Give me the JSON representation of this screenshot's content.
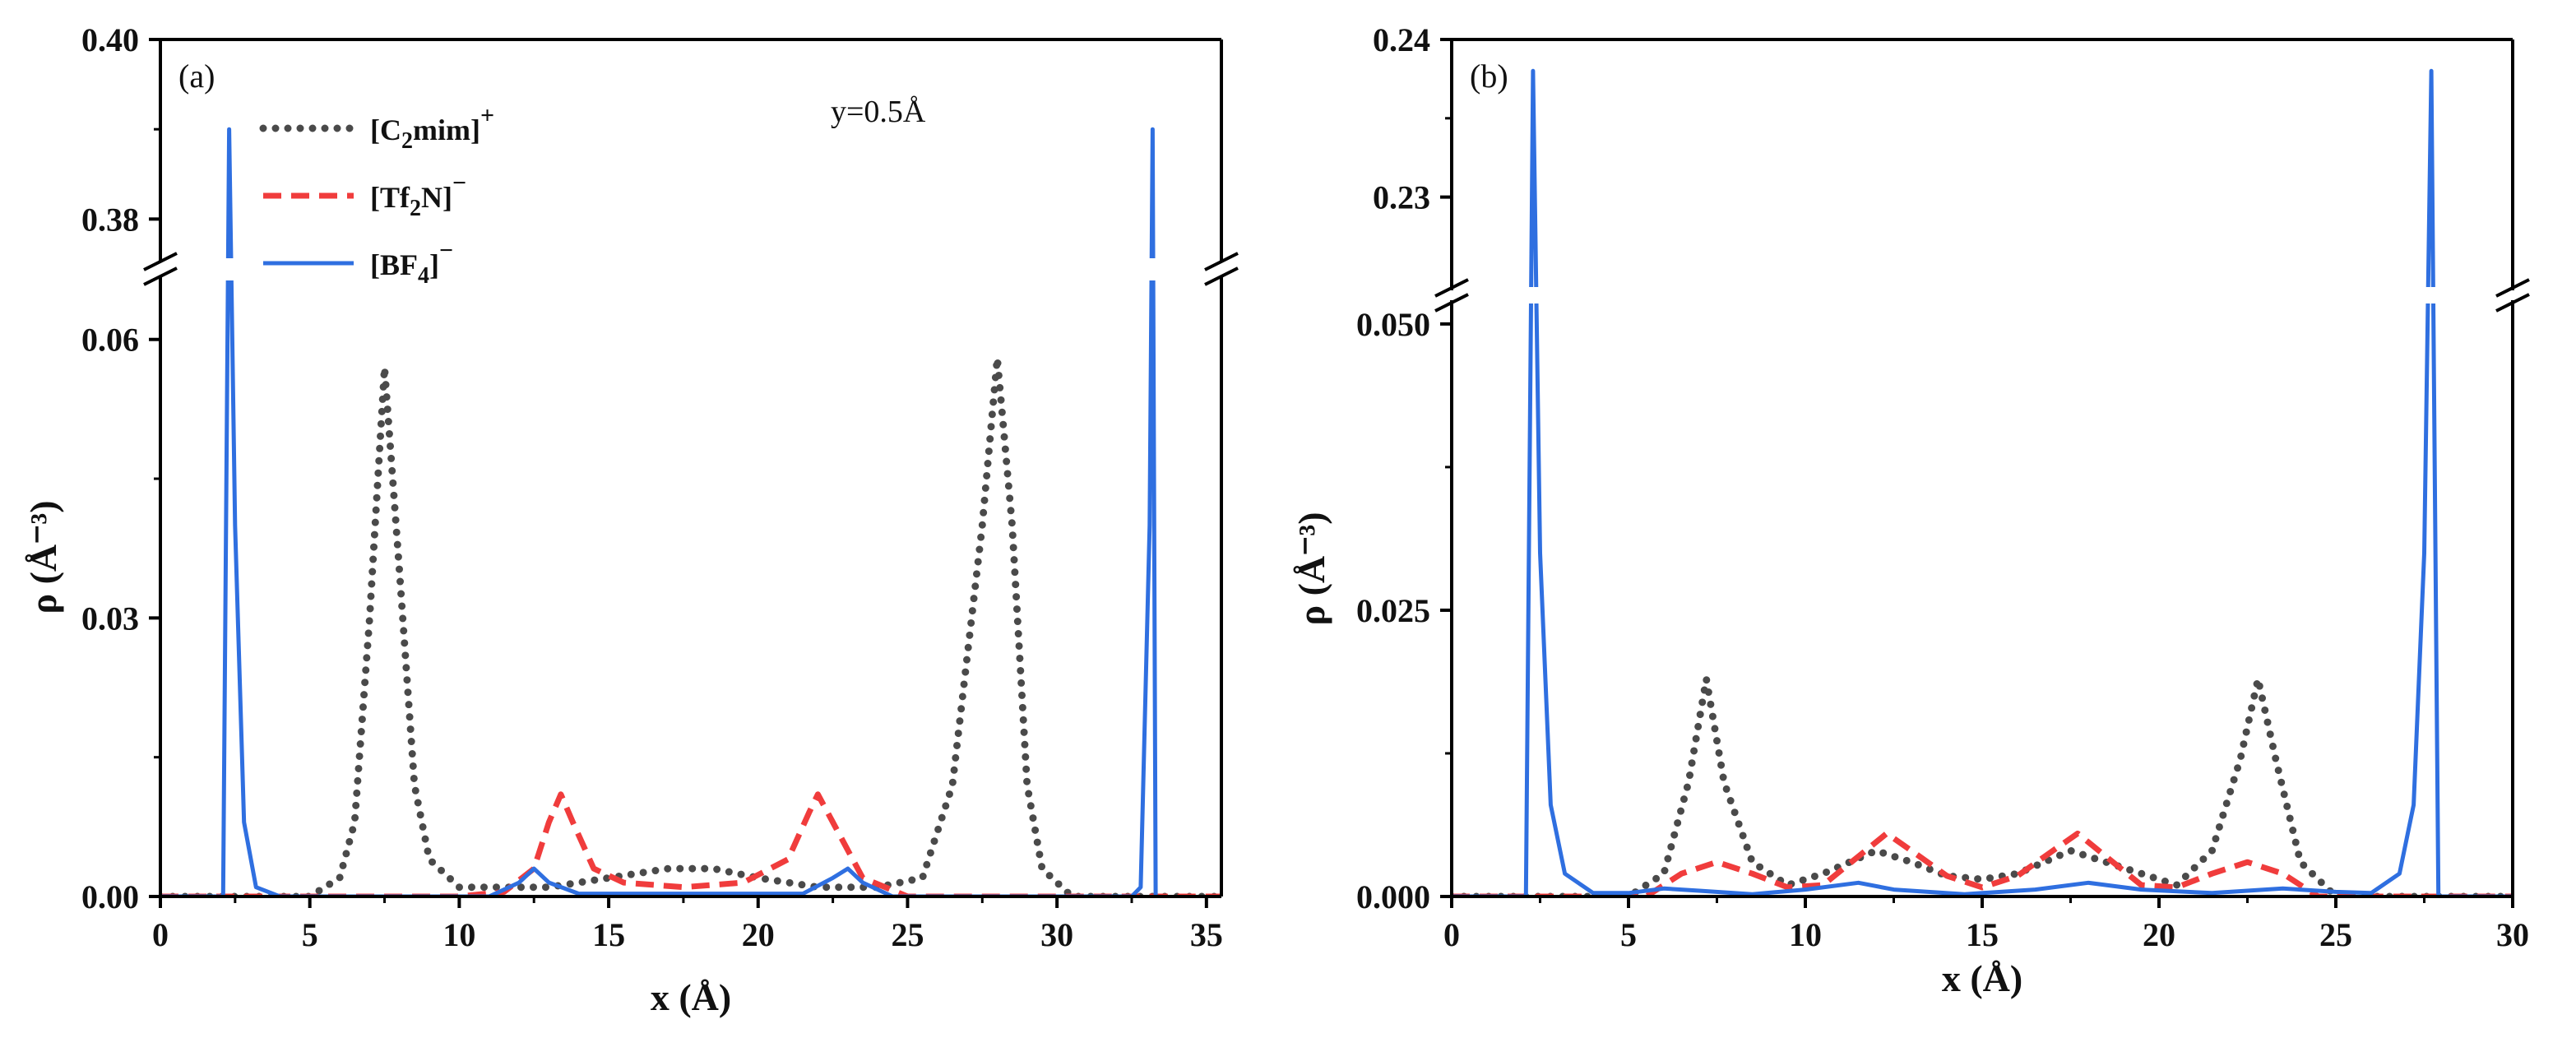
{
  "chart_data": [
    {
      "type": "line",
      "panel_label": "(a)",
      "annotation": "y=0.5Å",
      "xlabel": "x (Å)",
      "ylabel": "ρ (Å⁻³)",
      "xlim": [
        0,
        35.5
      ],
      "xticks": [
        0,
        5,
        10,
        15,
        20,
        25,
        30,
        35
      ],
      "ylim_lower": [
        0,
        0.066
      ],
      "ylim_upper": [
        0.376,
        0.4
      ],
      "yticks_lower": [
        0,
        0.03,
        0.06
      ],
      "yticks_upper": [
        0.38,
        0.4
      ],
      "ytick_labels_lower": [
        "0.00",
        "0.03",
        "0.06"
      ],
      "ytick_labels_upper": [
        "0.38",
        "0.40"
      ],
      "legend": {
        "position": "top-left"
      },
      "series": [
        {
          "name": "C2mim",
          "label_main": "[C",
          "label_sub": "2",
          "label_rest": "mim]",
          "label_sup": "+",
          "color": "#4a4a4a",
          "style": "dotted",
          "points": [
            [
              0,
              0
            ],
            [
              5,
              0
            ],
            [
              6,
              0.002
            ],
            [
              6.5,
              0.008
            ],
            [
              7,
              0.03
            ],
            [
              7.5,
              0.057
            ],
            [
              8,
              0.035
            ],
            [
              8.5,
              0.012
            ],
            [
              9,
              0.004
            ],
            [
              10,
              0.001
            ],
            [
              11.5,
              0.001
            ],
            [
              13,
              0.001
            ],
            [
              15,
              0.002
            ],
            [
              17,
              0.003
            ],
            [
              18.5,
              0.003
            ],
            [
              20,
              0.002
            ],
            [
              22,
              0.001
            ],
            [
              24,
              0.001
            ],
            [
              25.5,
              0.002
            ],
            [
              26.5,
              0.012
            ],
            [
              27.5,
              0.04
            ],
            [
              28,
              0.058
            ],
            [
              28.5,
              0.04
            ],
            [
              29,
              0.012
            ],
            [
              29.5,
              0.003
            ],
            [
              30.5,
              0
            ],
            [
              35.5,
              0
            ]
          ]
        },
        {
          "name": "Tf2N",
          "label_main": "[Tf",
          "label_sub": "2",
          "label_rest": "N]",
          "label_sup": "−",
          "color": "#f03c3c",
          "style": "dashed",
          "points": [
            [
              0,
              0
            ],
            [
              10,
              0
            ],
            [
              11.5,
              0.0005
            ],
            [
              12.5,
              0.003
            ],
            [
              13,
              0.008
            ],
            [
              13.4,
              0.011
            ],
            [
              13.8,
              0.008
            ],
            [
              14.5,
              0.003
            ],
            [
              15.5,
              0.0015
            ],
            [
              17.5,
              0.001
            ],
            [
              19.5,
              0.0015
            ],
            [
              21,
              0.004
            ],
            [
              21.7,
              0.009
            ],
            [
              22,
              0.011
            ],
            [
              22.5,
              0.008
            ],
            [
              23.5,
              0.002
            ],
            [
              25,
              0
            ],
            [
              35.5,
              0
            ]
          ]
        },
        {
          "name": "BF4",
          "label_main": "[BF",
          "label_sub": "4",
          "label_rest": "]",
          "label_sup": "−",
          "color": "#2f6fe0",
          "style": "solid",
          "points": [
            [
              0,
              0
            ],
            [
              2.1,
              0
            ],
            [
              2.3,
              0.39
            ],
            [
              2.5,
              0.04
            ],
            [
              2.8,
              0.008
            ],
            [
              3.2,
              0.001
            ],
            [
              4,
              0
            ],
            [
              11,
              0
            ],
            [
              12,
              0.0015
            ],
            [
              12.5,
              0.003
            ],
            [
              13,
              0.0015
            ],
            [
              14,
              0.0003
            ],
            [
              21.5,
              0.0003
            ],
            [
              22.5,
              0.002
            ],
            [
              23,
              0.003
            ],
            [
              23.5,
              0.0015
            ],
            [
              24.5,
              0
            ],
            [
              32.5,
              0
            ],
            [
              32.8,
              0.001
            ],
            [
              33.1,
              0.04
            ],
            [
              33.2,
              0.39
            ],
            [
              33.3,
              0
            ]
          ]
        }
      ]
    },
    {
      "type": "line",
      "panel_label": "(b)",
      "xlabel": "x (Å)",
      "ylabel": "ρ (Å⁻³)",
      "xlim": [
        0,
        30
      ],
      "xticks": [
        0,
        5,
        10,
        15,
        20,
        25,
        30
      ],
      "ylim_lower": [
        0,
        0.0515
      ],
      "ylim_upper": [
        0.2245,
        0.24
      ],
      "yticks_lower": [
        0,
        0.025,
        0.05
      ],
      "yticks_upper": [
        0.23,
        0.24
      ],
      "ytick_labels_lower": [
        "0.000",
        "0.025",
        "0.050"
      ],
      "ytick_labels_upper": [
        "0.23",
        "0.24"
      ],
      "series": [
        {
          "name": "C2mim",
          "color": "#4a4a4a",
          "style": "dotted",
          "points": [
            [
              0,
              0
            ],
            [
              5,
              0
            ],
            [
              6,
              0.002
            ],
            [
              6.7,
              0.01
            ],
            [
              7.2,
              0.019
            ],
            [
              7.7,
              0.01
            ],
            [
              8.5,
              0.003
            ],
            [
              9.5,
              0.001
            ],
            [
              10.5,
              0.002
            ],
            [
              12,
              0.004
            ],
            [
              13,
              0.003
            ],
            [
              14,
              0.0018
            ],
            [
              15,
              0.0015
            ],
            [
              16,
              0.002
            ],
            [
              17.5,
              0.004
            ],
            [
              18.5,
              0.003
            ],
            [
              19.5,
              0.002
            ],
            [
              20.5,
              0.001
            ],
            [
              21.5,
              0.004
            ],
            [
              22.3,
              0.012
            ],
            [
              22.8,
              0.019
            ],
            [
              23.3,
              0.012
            ],
            [
              24,
              0.003
            ],
            [
              25,
              0
            ],
            [
              30,
              0
            ]
          ]
        },
        {
          "name": "Tf2N",
          "color": "#f03c3c",
          "style": "dashed",
          "points": [
            [
              0,
              0
            ],
            [
              5.5,
              0
            ],
            [
              6.5,
              0.002
            ],
            [
              7.5,
              0.003
            ],
            [
              8.5,
              0.002
            ],
            [
              9.5,
              0.0008
            ],
            [
              10.5,
              0.001
            ],
            [
              11.5,
              0.0035
            ],
            [
              12.3,
              0.0055
            ],
            [
              13,
              0.004
            ],
            [
              14,
              0.0018
            ],
            [
              15,
              0.0008
            ],
            [
              16,
              0.0018
            ],
            [
              17,
              0.004
            ],
            [
              17.7,
              0.0055
            ],
            [
              18.5,
              0.0035
            ],
            [
              19.5,
              0.001
            ],
            [
              20.5,
              0.0008
            ],
            [
              21.5,
              0.002
            ],
            [
              22.5,
              0.003
            ],
            [
              23.5,
              0.002
            ],
            [
              24.5,
              0
            ],
            [
              30,
              0
            ]
          ]
        },
        {
          "name": "BF4",
          "color": "#2f6fe0",
          "style": "solid",
          "points": [
            [
              0,
              0
            ],
            [
              2.1,
              0
            ],
            [
              2.3,
              0.238
            ],
            [
              2.5,
              0.03
            ],
            [
              2.8,
              0.008
            ],
            [
              3.2,
              0.002
            ],
            [
              4,
              0.0003
            ],
            [
              5,
              0.0003
            ],
            [
              6,
              0.0007
            ],
            [
              7,
              0.0005
            ],
            [
              8.5,
              0.0002
            ],
            [
              10,
              0.0006
            ],
            [
              11.5,
              0.0012
            ],
            [
              12.5,
              0.0006
            ],
            [
              14.5,
              0.0002
            ],
            [
              16.5,
              0.0006
            ],
            [
              18,
              0.0012
            ],
            [
              19.5,
              0.0006
            ],
            [
              21.5,
              0.0003
            ],
            [
              23.5,
              0.0007
            ],
            [
              25,
              0.0004
            ],
            [
              26,
              0.0003
            ],
            [
              26.8,
              0.002
            ],
            [
              27.2,
              0.008
            ],
            [
              27.5,
              0.03
            ],
            [
              27.7,
              0.238
            ],
            [
              27.9,
              0
            ],
            [
              30,
              0
            ]
          ]
        }
      ]
    }
  ]
}
